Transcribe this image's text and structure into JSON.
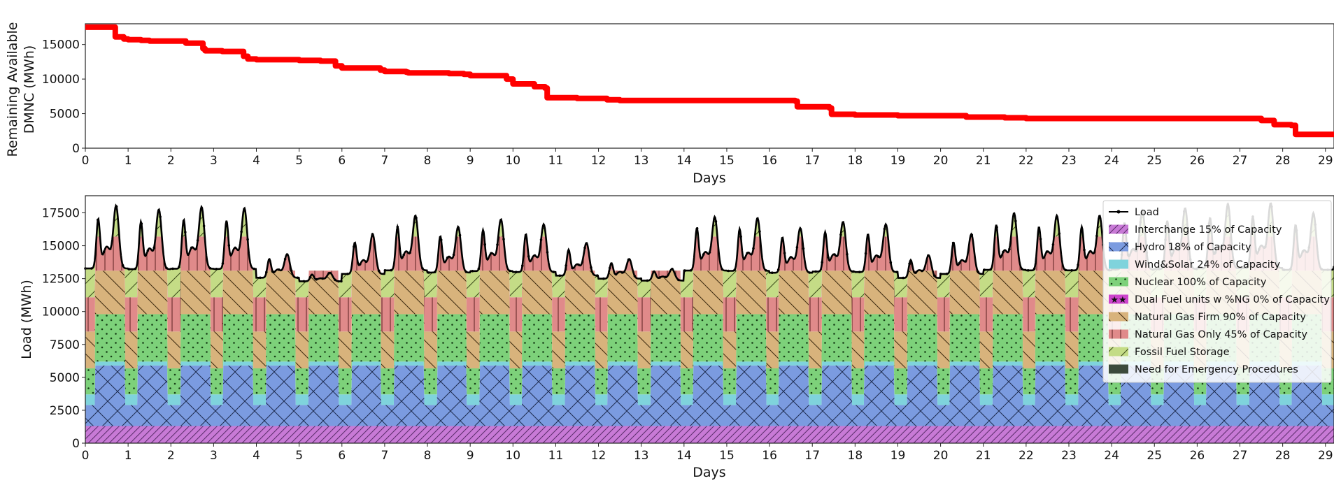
{
  "chart_data": [
    {
      "type": "line",
      "xlabel": "Days",
      "ylabel": "Remaining Available DMNC (MWh)",
      "ylabel_lines": [
        "Remaining Available",
        "DMNC (MWh)"
      ],
      "xlim": [
        0,
        29.2
      ],
      "ylim": [
        0,
        18000
      ],
      "x_ticks": [
        0,
        1,
        2,
        3,
        4,
        5,
        6,
        7,
        8,
        9,
        10,
        11,
        12,
        13,
        14,
        15,
        16,
        17,
        18,
        19,
        20,
        21,
        22,
        23,
        24,
        25,
        26,
        27,
        28,
        29
      ],
      "y_ticks": [
        0,
        5000,
        10000,
        15000
      ],
      "grid": false,
      "series": [
        {
          "color": "#ff0000",
          "x": [
            0,
            0.6,
            0.7,
            0.9,
            1.0,
            1.3,
            1.5,
            2.0,
            2.35,
            2.75,
            2.8,
            3.2,
            3.7,
            3.8,
            4.0,
            4.5,
            5.0,
            5.5,
            5.85,
            6.0,
            6.5,
            6.9,
            7.0,
            7.5,
            7.55,
            8.0,
            8.5,
            8.85,
            9.0,
            9.5,
            9.85,
            10.0,
            10.5,
            10.75,
            10.8,
            11.5,
            12.2,
            12.5,
            13.0,
            14.0,
            15.0,
            16.0,
            16.6,
            16.65,
            17.4,
            17.45,
            18.0,
            19.0,
            20.0,
            20.6,
            21.5,
            22.0,
            23.0,
            24.0,
            25.0,
            26.0,
            27.0,
            27.5,
            27.8,
            28.2,
            28.3,
            29.2
          ],
          "values": [
            17500,
            17500,
            16100,
            15800,
            15700,
            15600,
            15500,
            15500,
            15200,
            14400,
            14100,
            14000,
            13300,
            12900,
            12800,
            12800,
            12700,
            12600,
            11900,
            11600,
            11600,
            11300,
            11100,
            11000,
            10900,
            10900,
            10800,
            10700,
            10500,
            10500,
            10000,
            9300,
            8900,
            8700,
            7300,
            7200,
            7000,
            6900,
            6900,
            6900,
            6900,
            6900,
            6800,
            6000,
            5800,
            4900,
            4800,
            4700,
            4700,
            4500,
            4400,
            4300,
            4300,
            4300,
            4300,
            4300,
            4300,
            4000,
            3400,
            3300,
            2000,
            1900
          ]
        }
      ]
    },
    {
      "type": "area",
      "xlabel": "Days",
      "ylabel": "Load (MWh)",
      "xlim": [
        0,
        29.2
      ],
      "ylim": [
        0,
        18800
      ],
      "x_ticks": [
        0,
        1,
        2,
        3,
        4,
        5,
        6,
        7,
        8,
        9,
        10,
        11,
        12,
        13,
        14,
        15,
        16,
        17,
        18,
        19,
        20,
        21,
        22,
        23,
        24,
        25,
        26,
        27,
        28,
        29
      ],
      "y_ticks": [
        0,
        2500,
        5000,
        7500,
        10000,
        12500,
        15000,
        17500
      ],
      "grid": false,
      "legend_placement": "right",
      "daily_peaks": [
        18400,
        18100,
        18300,
        18200,
        14500,
        13000,
        16100,
        17600,
        16700,
        17300,
        16900,
        15400,
        14100,
        13300,
        17500,
        17400,
        16600,
        17100,
        16900,
        14400,
        16100,
        17800,
        17600,
        17600,
        18000,
        18200,
        18500,
        18600,
        17800
      ],
      "series": [
        {
          "name": "Load",
          "color": "#000000",
          "kind": "line"
        },
        {
          "name": "Interchange 15% of Capacity",
          "color": "#c87ad6",
          "pattern": "diag-right",
          "values": [
            1300
          ]
        },
        {
          "name": "Hydro 18% of Capacity",
          "color": "#7b9be0",
          "pattern": "cross",
          "values": [
            1600,
            3000
          ]
        },
        {
          "name": "Wind&Solar 24% of Capacity",
          "color": "#7fd3dc",
          "values": [
            300,
            500
          ]
        },
        {
          "name": "Nuclear 100% of Capacity",
          "color": "#7dd17a",
          "pattern": "dots",
          "values": [
            3600
          ]
        },
        {
          "name": "Dual Fuel units w %NG 0% of Capacity",
          "color": "#cc44cc",
          "pattern": "stars",
          "values": [
            0
          ]
        },
        {
          "name": "Natural Gas Firm 90% of Capacity",
          "color": "#d8b37c",
          "pattern": "diag-left",
          "values": [
            3300
          ]
        },
        {
          "name": "Natural Gas Only 45% of Capacity",
          "color": "#e08a8a",
          "pattern": "vertical",
          "values": [
            2600
          ]
        },
        {
          "name": "Fossil Fuel Storage",
          "color": "#c4dc86",
          "pattern": "diag-right"
        },
        {
          "name": "Need for Emergency Procedures",
          "color": "#3c4a3c"
        }
      ]
    }
  ]
}
